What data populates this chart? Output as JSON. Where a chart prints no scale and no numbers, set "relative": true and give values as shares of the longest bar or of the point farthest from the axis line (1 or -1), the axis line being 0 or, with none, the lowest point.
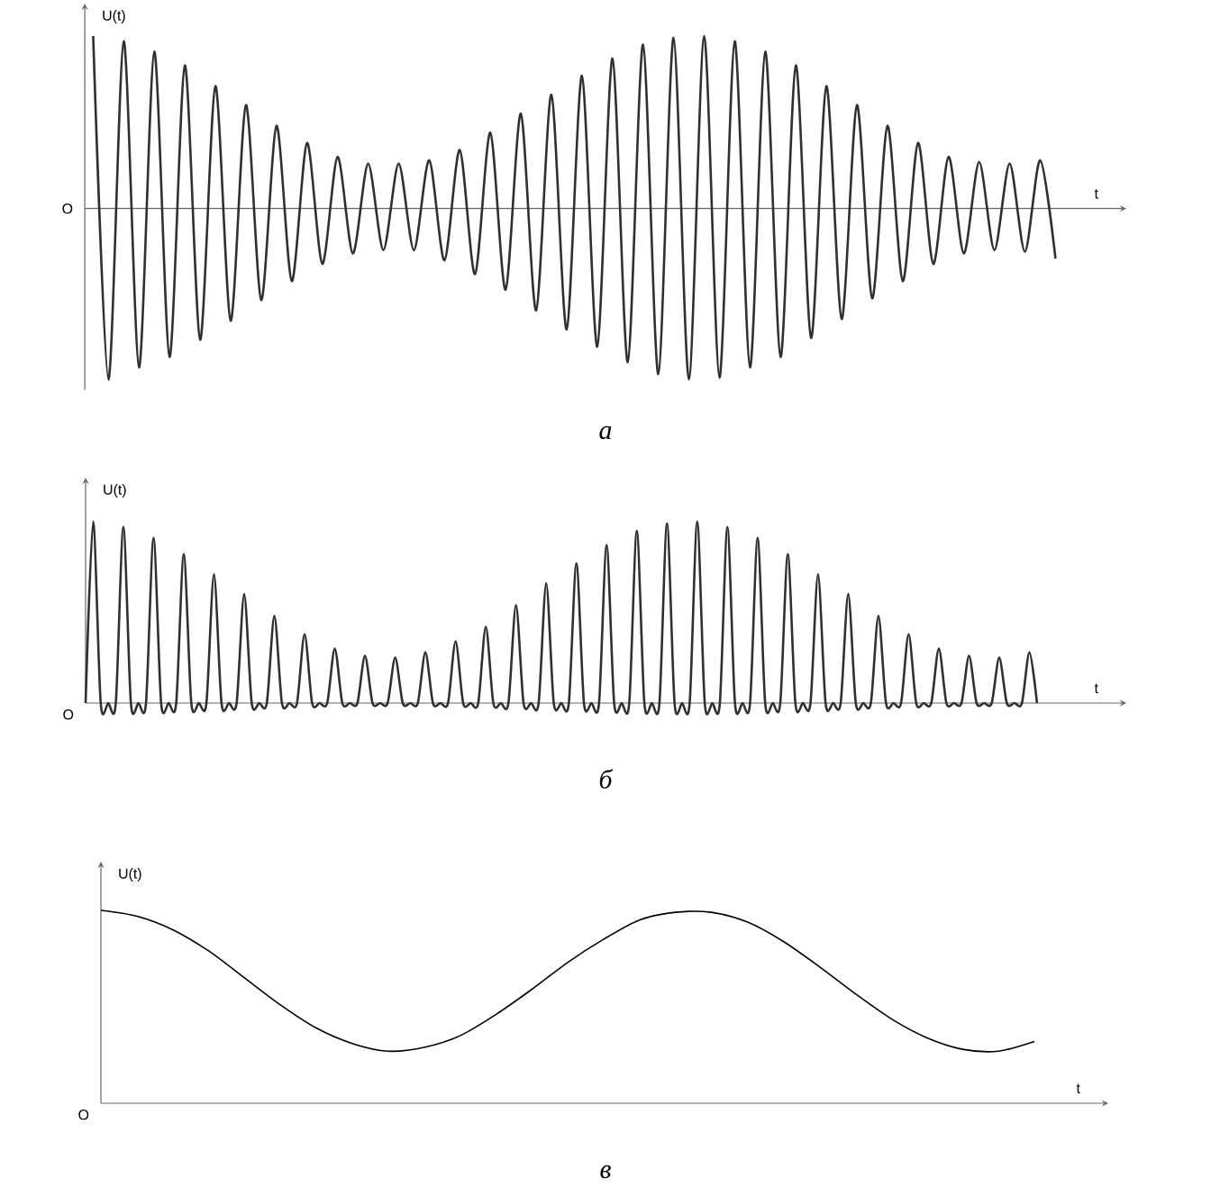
{
  "chart_data": [
    {
      "type": "line",
      "title": "а",
      "xlabel": "t",
      "ylabel": "U(t)",
      "annotations": [
        "O"
      ],
      "relative": true,
      "color": "#303030",
      "categories": [
        null,
        null,
        null,
        null,
        null,
        null,
        null,
        null,
        null,
        null,
        null,
        null,
        null,
        null,
        null,
        null,
        null,
        null,
        null,
        null,
        null,
        null,
        null,
        null,
        null,
        null,
        null,
        null,
        null,
        null,
        null,
        null,
        null,
        null,
        null,
        null,
        null,
        null,
        null,
        null,
        null,
        null,
        null,
        null,
        null,
        null,
        null,
        null,
        null,
        null,
        null,
        null,
        null,
        null,
        null,
        null,
        null,
        null,
        null,
        null,
        null,
        null,
        null,
        null
      ],
      "values": [
        1.0,
        -0.99,
        0.97,
        -0.92,
        0.91,
        -0.86,
        0.83,
        -0.76,
        0.71,
        -0.65,
        0.6,
        -0.53,
        0.48,
        -0.42,
        0.38,
        -0.32,
        0.3,
        -0.26,
        0.26,
        -0.24,
        0.26,
        -0.24,
        0.28,
        -0.3,
        0.34,
        -0.38,
        0.44,
        -0.47,
        0.55,
        -0.59,
        0.66,
        -0.7,
        0.77,
        -0.8,
        0.87,
        -0.89,
        0.95,
        -0.96,
        0.99,
        -0.99,
        1.0,
        -0.98,
        0.97,
        -0.92,
        0.91,
        -0.86,
        0.83,
        -0.75,
        0.71,
        -0.64,
        0.6,
        -0.52,
        0.48,
        -0.42,
        0.38,
        -0.32,
        0.3,
        -0.26,
        0.27,
        -0.24,
        0.26,
        -0.25,
        0.28,
        -0.29
      ]
    },
    {
      "type": "line",
      "title": "б",
      "xlabel": "t",
      "ylabel": "U(t)",
      "annotations": [
        "O"
      ],
      "relative": true,
      "color": "#303030",
      "categories": [
        null,
        null,
        null,
        null,
        null,
        null,
        null,
        null,
        null,
        null,
        null,
        null,
        null,
        null,
        null,
        null,
        null,
        null,
        null,
        null,
        null,
        null,
        null,
        null,
        null,
        null,
        null,
        null,
        null,
        null,
        null,
        null,
        null,
        null,
        null,
        null,
        null,
        null,
        null,
        null,
        null,
        null,
        null,
        null,
        null,
        null,
        null,
        null,
        null,
        null,
        null,
        null,
        null,
        null,
        null,
        null,
        null,
        null,
        null,
        null,
        null,
        null,
        null,
        null,
        null,
        null,
        null,
        null,
        null,
        null,
        null,
        null,
        null,
        null,
        null,
        null,
        null,
        null,
        null,
        null,
        null,
        null,
        null,
        null,
        null,
        null,
        null,
        null,
        null,
        null,
        null,
        null,
        null,
        null,
        null,
        null,
        null,
        null,
        null,
        null,
        null,
        null,
        null,
        null,
        null,
        null,
        null,
        null,
        null,
        null,
        null,
        null,
        null,
        null,
        null,
        null,
        null,
        null,
        null,
        null,
        null,
        null,
        null,
        null,
        null,
        null,
        null
      ],
      "values": [
        0,
        1.0,
        0,
        0,
        0,
        0.97,
        0,
        0,
        0,
        0.91,
        0,
        0,
        0,
        0.82,
        0,
        0,
        0,
        0.71,
        0,
        0,
        0,
        0.6,
        0,
        0,
        0,
        0.48,
        0,
        0,
        0,
        0.38,
        0,
        0,
        0,
        0.3,
        0,
        0,
        0,
        0.26,
        0,
        0,
        0,
        0.25,
        0,
        0,
        0,
        0.28,
        0,
        0,
        0,
        0.34,
        0,
        0,
        0,
        0.42,
        0,
        0,
        0,
        0.54,
        0,
        0,
        0,
        0.66,
        0,
        0,
        0,
        0.77,
        0,
        0,
        0,
        0.87,
        0,
        0,
        0,
        0.95,
        0,
        0,
        0,
        0.99,
        0,
        0,
        0,
        1.0,
        0,
        0,
        0,
        0.97,
        0,
        0,
        0,
        0.91,
        0,
        0,
        0,
        0.82,
        0,
        0,
        0,
        0.71,
        0,
        0,
        0,
        0.6,
        0,
        0,
        0,
        0.48,
        0,
        0,
        0,
        0.38,
        0,
        0,
        0,
        0.3,
        0,
        0,
        0,
        0.26,
        0,
        0,
        0,
        0.25,
        0,
        0,
        0,
        0.28,
        0
      ]
    },
    {
      "type": "line",
      "title": "в",
      "xlabel": "t",
      "ylabel": "U(t)",
      "annotations": [
        "O"
      ],
      "relative": true,
      "color": "#000000",
      "categories": [
        null,
        null,
        null,
        null,
        null,
        null,
        null,
        null,
        null,
        null,
        null,
        null,
        null,
        null,
        null,
        null,
        null,
        null,
        null,
        null,
        null,
        null,
        null,
        null,
        null,
        null,
        null
      ],
      "values": [
        1.0,
        0.97,
        0.9,
        0.79,
        0.65,
        0.51,
        0.39,
        0.31,
        0.27,
        0.29,
        0.35,
        0.46,
        0.59,
        0.73,
        0.85,
        0.95,
        0.99,
        0.99,
        0.94,
        0.84,
        0.71,
        0.57,
        0.44,
        0.34,
        0.28,
        0.27,
        0.32
      ]
    }
  ]
}
